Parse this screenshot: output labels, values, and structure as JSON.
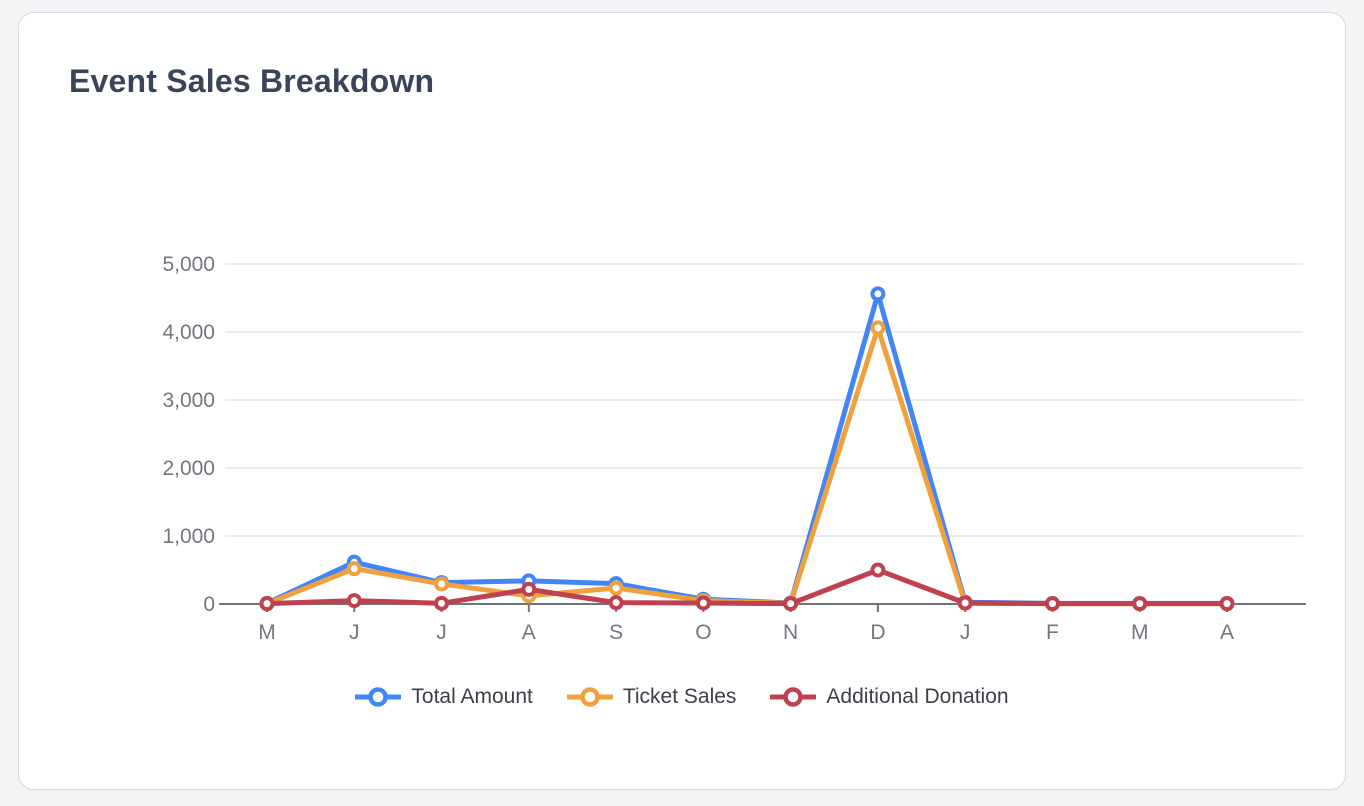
{
  "card": {
    "title": "Event Sales Breakdown"
  },
  "chart_data": {
    "type": "line",
    "title": "Event Sales Breakdown",
    "categories": [
      "M",
      "J",
      "J",
      "A",
      "S",
      "O",
      "N",
      "D",
      "J",
      "F",
      "M",
      "A"
    ],
    "series": [
      {
        "name": "Total Amount",
        "color": "#4285F4",
        "values": [
          10,
          615,
          315,
          340,
          300,
          70,
          15,
          4560,
          25,
          10,
          10,
          10
        ]
      },
      {
        "name": "Ticket Sales",
        "color": "#F0A13E",
        "values": [
          5,
          520,
          295,
          120,
          235,
          50,
          10,
          4060,
          10,
          5,
          5,
          5
        ]
      },
      {
        "name": "Additional Donation",
        "color": "#BF4150",
        "values": [
          5,
          50,
          10,
          215,
          20,
          15,
          5,
          500,
          15,
          5,
          5,
          5
        ]
      }
    ],
    "ylim": [
      0,
      5000
    ],
    "yticks": [
      0,
      1000,
      2000,
      3000,
      4000,
      5000
    ],
    "ytick_labels": [
      "0",
      "1,000",
      "2,000",
      "3,000",
      "4,000",
      "5,000"
    ],
    "grid": true,
    "legend_position": "bottom",
    "marker_style": "hollow-circle",
    "colors": {
      "grid_line": "#E3E6EB",
      "axis_line": "#70757D",
      "tick_text": "#71767F",
      "title_text": "#3A4458",
      "legend_text": "#3B3F46",
      "card_background": "#FFFFFF",
      "page_background": "#F4F5F6",
      "card_border": "#D7DAE1"
    }
  }
}
